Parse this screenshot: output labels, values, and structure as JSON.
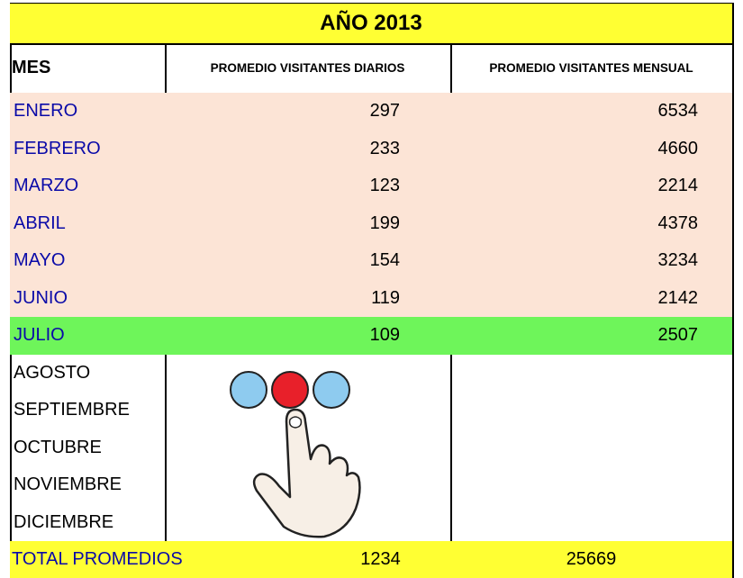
{
  "title": "AÑO 2013",
  "table": {
    "header": [
      "MES",
      "PROMEDIO VISITANTES DIARIOS",
      "PROMEDIO VISITANTES MENSUAL"
    ],
    "rows": [
      [
        "ENERO",
        297,
        6534
      ],
      [
        "FEBRERO",
        233,
        4660
      ],
      [
        "MARZO",
        123,
        2214
      ],
      [
        "ABRIL",
        199,
        4378
      ],
      [
        "MAYO",
        154,
        3234
      ],
      [
        "JUNIO",
        119,
        2142
      ],
      [
        "JULIO",
        109,
        2507
      ]
    ],
    "empty_months": [
      "AGOSTO",
      "SEPTIEMBRE",
      "OCTUBRE",
      "NOVIEMBRE",
      "DICIEMBRE"
    ],
    "total": [
      "TOTAL PROMEDIOS",
      1234,
      25669
    ]
  }
}
